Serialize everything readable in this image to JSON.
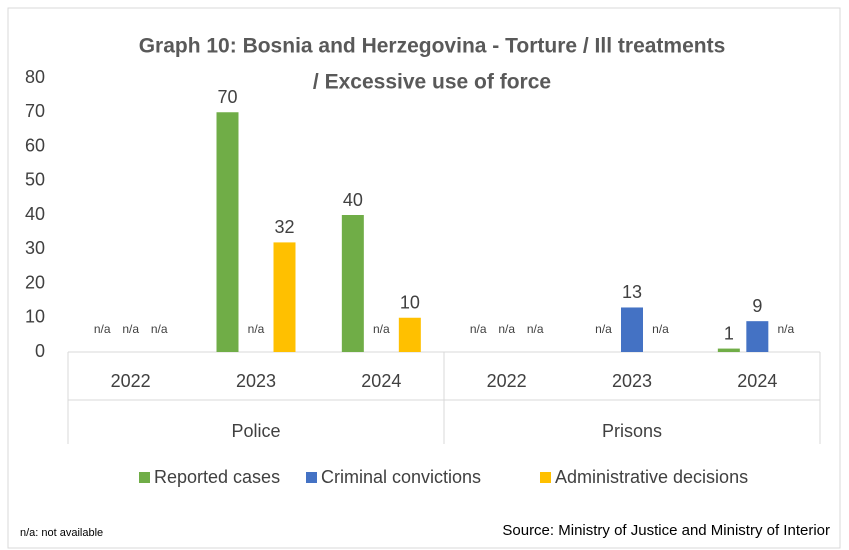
{
  "chart_data": {
    "type": "bar",
    "title": [
      "Graph 10: Bosnia and Herzegovina - Torture / Ill treatments",
      "/ Excessive use of force"
    ],
    "categories": [
      "2022",
      "2023",
      "2024",
      "2022",
      "2023",
      "2024"
    ],
    "groups": [
      "Police",
      "Prisons"
    ],
    "series": [
      {
        "name": "Reported cases",
        "color": "#70ad47",
        "values": [
          null,
          70,
          40,
          null,
          null,
          1
        ],
        "value_labels": [
          "n/a",
          "70",
          "40",
          "n/a",
          "n/a",
          "1"
        ]
      },
      {
        "name": "Criminal convictions",
        "color": "#4472c4",
        "values": [
          null,
          null,
          null,
          null,
          13,
          9
        ],
        "value_labels": [
          "n/a",
          "n/a",
          "n/a",
          "n/a",
          "13",
          "9"
        ]
      },
      {
        "name": "Administrative decisions",
        "color": "#ffc000",
        "values": [
          null,
          32,
          10,
          null,
          null,
          null
        ],
        "value_labels": [
          "n/a",
          "32",
          "10",
          "n/a",
          "n/a",
          "n/a"
        ]
      }
    ],
    "ylim": [
      0,
      80
    ],
    "yticks": [
      0,
      10,
      20,
      30,
      40,
      50,
      60,
      70,
      80
    ],
    "grid": false,
    "legend": "bottom",
    "annotations": [
      "n/a: not available",
      "Source: Ministry of Justice and Ministry of Interior"
    ]
  }
}
